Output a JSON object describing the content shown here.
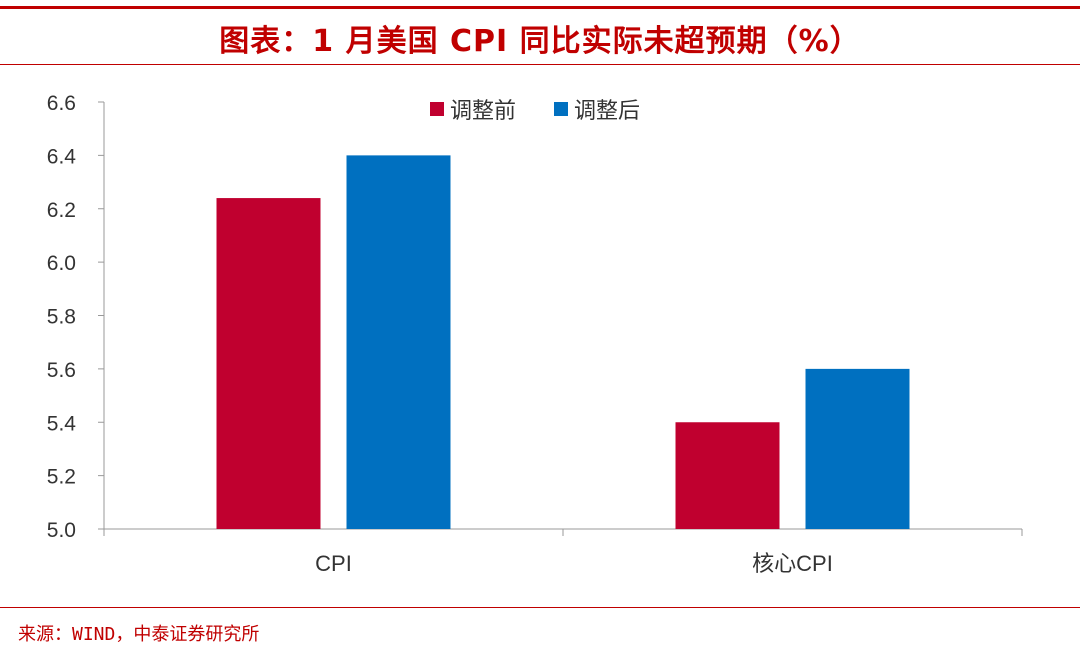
{
  "header": {
    "title": "图表：1 月美国 CPI 同比实际未超预期（%）"
  },
  "footer": {
    "source": "来源：WIND，中泰证券研究所"
  },
  "colors": {
    "accent": "#c00000",
    "series1": "#c0002f",
    "series2": "#0070c0",
    "axis": "#999999"
  },
  "chart_data": {
    "type": "bar",
    "categories": [
      "CPI",
      "核心CPI"
    ],
    "series": [
      {
        "name": "调整前",
        "values": [
          6.24,
          5.4
        ]
      },
      {
        "name": "调整后",
        "values": [
          6.4,
          5.6
        ]
      }
    ],
    "ylim": [
      5.0,
      6.6
    ],
    "yticks": [
      "5.0",
      "5.2",
      "5.4",
      "5.6",
      "5.8",
      "6.0",
      "6.2",
      "6.4",
      "6.6"
    ],
    "legend_position": "top-center",
    "grid": false
  }
}
